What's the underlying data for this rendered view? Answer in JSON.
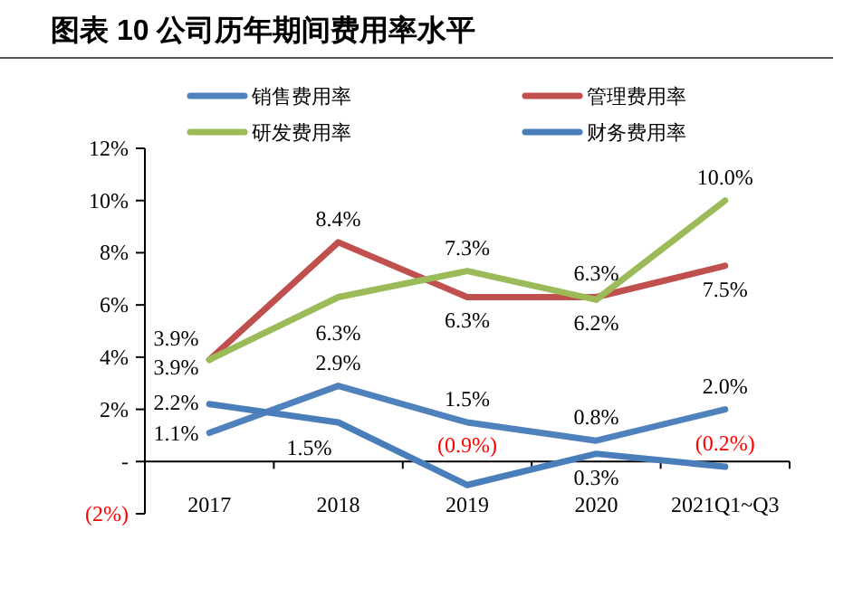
{
  "chart_data": {
    "type": "line",
    "title": "图表 10 公司历年期间费用率水平",
    "categories": [
      "2017",
      "2018",
      "2019",
      "2020",
      "2021Q1~Q3"
    ],
    "series": [
      {
        "name": "销售费用率",
        "color": "#4f81bd",
        "values": [
          1.1,
          2.9,
          1.5,
          0.8,
          2.0
        ],
        "value_labels": [
          "1.1%",
          "2.9%",
          "1.5%",
          "0.8%",
          "2.0%"
        ]
      },
      {
        "name": "管理费用率",
        "color": "#c0504d",
        "values": [
          3.9,
          8.4,
          6.3,
          6.3,
          7.5
        ],
        "value_labels": [
          "3.9%",
          "8.4%",
          "6.3%",
          "6.3%",
          "7.5%"
        ]
      },
      {
        "name": "研发费用率",
        "color": "#9bbb59",
        "values": [
          3.9,
          6.3,
          7.3,
          6.2,
          10.0
        ],
        "value_labels": [
          "3.9%",
          "6.3%",
          "7.3%",
          "6.2%",
          "10.0%"
        ]
      },
      {
        "name": "财务费用率",
        "color": "#4a7ebb",
        "values": [
          2.2,
          1.5,
          -0.9,
          0.3,
          -0.2
        ],
        "value_labels": [
          "2.2%",
          "1.5%",
          "(0.9%)",
          "0.3%",
          "(0.2%)"
        ]
      }
    ],
    "ylim": [
      -2,
      12
    ],
    "yticks": [
      {
        "value": -2,
        "label": "(2%)"
      },
      {
        "value": 0,
        "label": "-"
      },
      {
        "value": 2,
        "label": "2%"
      },
      {
        "value": 4,
        "label": "4%"
      },
      {
        "value": 6,
        "label": "6%"
      },
      {
        "value": 8,
        "label": "8%"
      },
      {
        "value": 10,
        "label": "10%"
      },
      {
        "value": 12,
        "label": "12%"
      }
    ],
    "legend": "top",
    "grid": false,
    "marker": "none",
    "line_style": "solid"
  }
}
